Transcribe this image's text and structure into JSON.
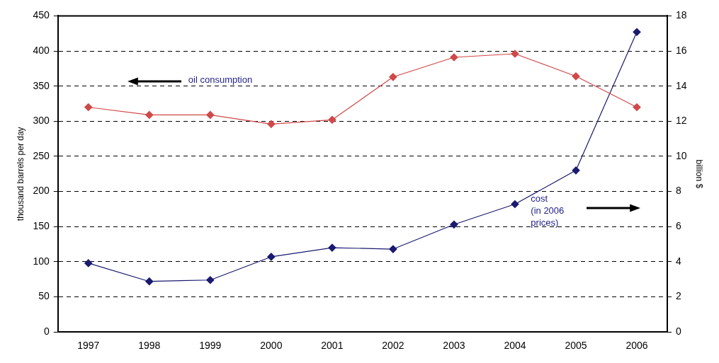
{
  "chart_data": {
    "type": "line",
    "ylabel": "thousand barrels per day",
    "y2label": "billion $",
    "categories": [
      "1997",
      "1998",
      "1999",
      "2000",
      "2001",
      "2002",
      "2003",
      "2004",
      "2005",
      "2006"
    ],
    "series": [
      {
        "color": "#d04848",
        "values": [
          320,
          309,
          309,
          296,
          302,
          363,
          391,
          396,
          364,
          320
        ]
      },
      {
        "color": "#1a1a70",
        "axis": "y2",
        "values": [
          3.92,
          2.88,
          2.96,
          4.28,
          4.8,
          4.72,
          6.12,
          7.28,
          9.2,
          17.08
        ]
      }
    ],
    "ylim": [
      0,
      450
    ],
    "yticks": [
      0,
      50,
      100,
      150,
      200,
      250,
      300,
      350,
      400,
      450
    ],
    "y2lim": [
      0,
      18
    ],
    "y2ticks": [
      0,
      2,
      4,
      6,
      8,
      10,
      12,
      14,
      16,
      18
    ],
    "grid": "y",
    "marker": "diamond",
    "line_style": "solid",
    "legend": false,
    "annotations": [
      "oil consumption",
      "cost\n(in 2006\nprices)"
    ]
  }
}
